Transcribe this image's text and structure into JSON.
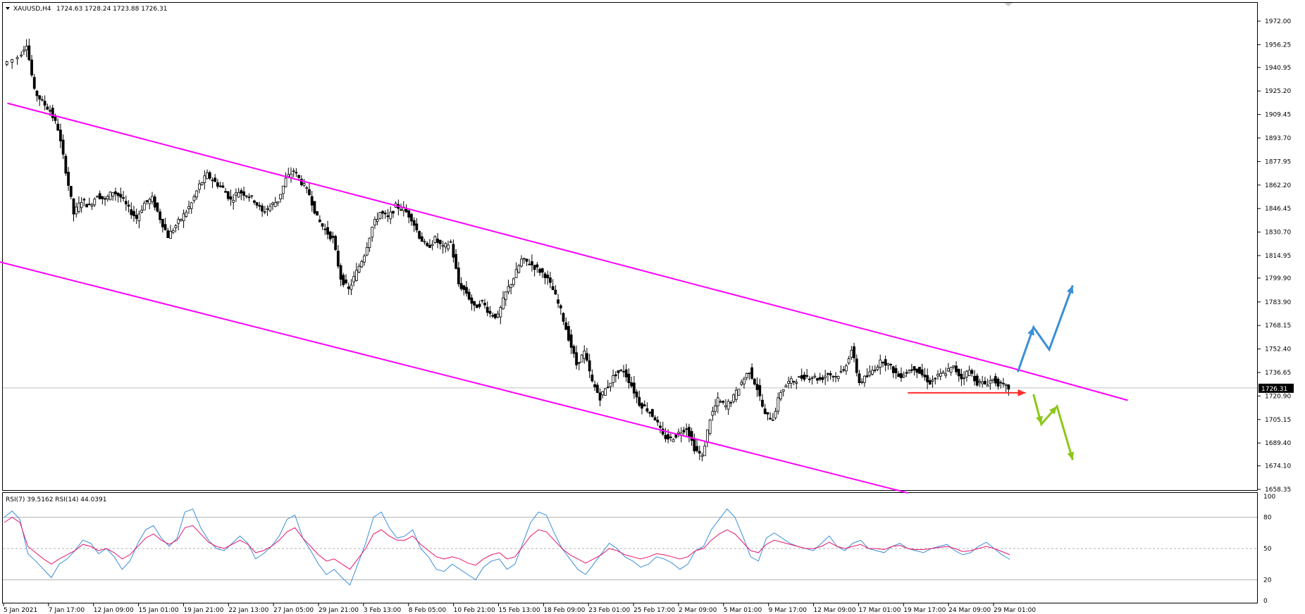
{
  "header": {
    "symbol_label": "XAUUSD,H4",
    "ohlc_label": "1724.63 1728.24 1723.88 1726.31"
  },
  "indicator": {
    "label": "RSI(7) 39.5162   RSI(14) 44.0391",
    "levels": [
      80,
      50,
      20
    ],
    "scale_labels": [
      "100",
      "50",
      "20",
      "80",
      "0"
    ]
  },
  "colors": {
    "candles": "#000000",
    "channel": "#ff00ff",
    "bull_arrows": "#3a8fd8",
    "bear_arrows": "#8cc71a",
    "support_arrow": "#ff2a2a",
    "rsi7": "#3a8fd8",
    "rsi14": "#e8176e"
  },
  "chart_data": [
    {
      "type": "candlestick",
      "symbol": "XAUUSD",
      "timeframe": "H4",
      "last_price": 1726.31,
      "last_price_label": "1726.31",
      "ylim": [
        1658.35,
        1972.0
      ],
      "y_ticks": [
        1972.0,
        1956.25,
        1940.95,
        1925.2,
        1909.45,
        1893.7,
        1877.95,
        1862.2,
        1846.45,
        1830.7,
        1814.95,
        1799.9,
        1783.9,
        1768.15,
        1752.4,
        1736.65,
        1720.9,
        1705.15,
        1689.4,
        1674.1,
        1658.35
      ],
      "y_tick_labels": [
        "1972.00",
        "1956.25",
        "1940.95",
        "1925.20",
        "1909.45",
        "1893.70",
        "1877.95",
        "1862.20",
        "1846.45",
        "1830.70",
        "1814.95",
        "1799.90",
        "1783.90",
        "1768.15",
        "1752.40",
        "1736.65",
        "1720.90",
        "1705.15",
        "1689.40",
        "1674.10",
        "1658.35"
      ],
      "x_tick_labels": [
        "5 Jan 2021",
        "7 Jan 17:00",
        "12 Jan 09:00",
        "15 Jan 01:00",
        "19 Jan 21:00",
        "22 Jan 13:00",
        "27 Jan 05:00",
        "29 Jan 21:00",
        "3 Feb 13:00",
        "8 Feb 05:00",
        "10 Feb 21:00",
        "15 Feb 13:00",
        "18 Feb 09:00",
        "23 Feb 01:00",
        "25 Feb 17:00",
        "2 Mar 09:00",
        "5 Mar 01:00",
        "9 Mar 17:00",
        "12 Mar 09:00",
        "17 Mar 01:00",
        "19 Mar 17:00",
        "24 Mar 09:00",
        "29 Mar 01:00"
      ],
      "close_path": [
        [
          0,
          1943
        ],
        [
          2,
          1948
        ],
        [
          3,
          1957
        ],
        [
          4,
          1925
        ],
        [
          5,
          1918
        ],
        [
          6,
          1912
        ],
        [
          7,
          1900
        ],
        [
          8,
          1872
        ],
        [
          9,
          1843
        ],
        [
          10,
          1852
        ],
        [
          11,
          1848
        ],
        [
          12,
          1856
        ],
        [
          13,
          1852
        ],
        [
          14,
          1858
        ],
        [
          15,
          1854
        ],
        [
          16,
          1846
        ],
        [
          17,
          1840
        ],
        [
          18,
          1850
        ],
        [
          19,
          1853
        ],
        [
          20,
          1840
        ],
        [
          21,
          1828
        ],
        [
          22,
          1835
        ],
        [
          23,
          1842
        ],
        [
          24,
          1850
        ],
        [
          25,
          1862
        ],
        [
          26,
          1869
        ],
        [
          27,
          1864
        ],
        [
          28,
          1860
        ],
        [
          29,
          1852
        ],
        [
          30,
          1858
        ],
        [
          31,
          1856
        ],
        [
          32,
          1852
        ],
        [
          33,
          1844
        ],
        [
          34,
          1848
        ],
        [
          35,
          1852
        ],
        [
          36,
          1866
        ],
        [
          37,
          1872
        ],
        [
          38,
          1864
        ],
        [
          39,
          1856
        ],
        [
          40,
          1840
        ],
        [
          41,
          1832
        ],
        [
          42,
          1826
        ],
        [
          43,
          1800
        ],
        [
          44,
          1792
        ],
        [
          45,
          1804
        ],
        [
          46,
          1816
        ],
        [
          47,
          1834
        ],
        [
          48,
          1844
        ],
        [
          49,
          1840
        ],
        [
          50,
          1848
        ],
        [
          51,
          1846
        ],
        [
          52,
          1840
        ],
        [
          53,
          1828
        ],
        [
          54,
          1820
        ],
        [
          55,
          1826
        ],
        [
          56,
          1820
        ],
        [
          57,
          1824
        ],
        [
          58,
          1796
        ],
        [
          59,
          1790
        ],
        [
          60,
          1780
        ],
        [
          61,
          1784
        ],
        [
          62,
          1776
        ],
        [
          63,
          1774
        ],
        [
          64,
          1790
        ],
        [
          65,
          1800
        ],
        [
          66,
          1812
        ],
        [
          67,
          1810
        ],
        [
          68,
          1806
        ],
        [
          69,
          1802
        ],
        [
          70,
          1792
        ],
        [
          71,
          1778
        ],
        [
          72,
          1760
        ],
        [
          73,
          1742
        ],
        [
          74,
          1750
        ],
        [
          75,
          1730
        ],
        [
          76,
          1720
        ],
        [
          77,
          1728
        ],
        [
          78,
          1736
        ],
        [
          79,
          1738
        ],
        [
          80,
          1728
        ],
        [
          81,
          1716
        ],
        [
          82,
          1712
        ],
        [
          83,
          1706
        ],
        [
          84,
          1694
        ],
        [
          85,
          1692
        ],
        [
          86,
          1696
        ],
        [
          87,
          1700
        ],
        [
          88,
          1686
        ],
        [
          89,
          1680
        ],
        [
          90,
          1706
        ],
        [
          91,
          1718
        ],
        [
          92,
          1714
        ],
        [
          93,
          1720
        ],
        [
          94,
          1730
        ],
        [
          95,
          1738
        ],
        [
          96,
          1726
        ],
        [
          97,
          1708
        ],
        [
          98,
          1706
        ],
        [
          99,
          1724
        ],
        [
          100,
          1730
        ],
        [
          101,
          1732
        ],
        [
          102,
          1734
        ],
        [
          103,
          1734
        ],
        [
          104,
          1732
        ],
        [
          105,
          1736
        ],
        [
          106,
          1734
        ],
        [
          107,
          1738
        ],
        [
          108,
          1752
        ],
        [
          109,
          1730
        ],
        [
          110,
          1734
        ],
        [
          111,
          1740
        ],
        [
          112,
          1745
        ],
        [
          113,
          1740
        ],
        [
          114,
          1734
        ],
        [
          115,
          1737
        ],
        [
          116,
          1740
        ],
        [
          117,
          1735
        ],
        [
          118,
          1730
        ],
        [
          119,
          1734
        ],
        [
          120,
          1737
        ],
        [
          121,
          1740
        ],
        [
          122,
          1733
        ],
        [
          123,
          1738
        ],
        [
          124,
          1730
        ],
        [
          125,
          1729
        ],
        [
          126,
          1732
        ],
        [
          127,
          1728
        ],
        [
          128,
          1726.31
        ]
      ],
      "last_price_line": 1726.31,
      "drawings": {
        "channel_upper": [
          [
            0.4,
            1917
          ],
          [
            128,
            1740
          ],
          [
            143,
            1718
          ]
        ],
        "channel_lower": [
          [
            -15,
            1830
          ],
          [
            115,
            1656
          ]
        ],
        "red_support_arrow": [
          [
            115,
            1723
          ],
          [
            130,
            1723
          ]
        ],
        "blue_path": [
          [
            129,
            1737
          ],
          [
            131,
            1767
          ],
          [
            133,
            1752
          ],
          [
            136,
            1795
          ]
        ],
        "green_path": [
          [
            131,
            1722
          ],
          [
            132,
            1702
          ],
          [
            134,
            1714
          ],
          [
            136,
            1678
          ]
        ]
      }
    },
    {
      "type": "line",
      "title": "RSI(7) 39.5162   RSI(14) 44.0391",
      "ylim": [
        0,
        100
      ],
      "levels": [
        80,
        50,
        20
      ],
      "series": [
        {
          "name": "RSI(7)",
          "current": 39.5162,
          "values": [
            80,
            86,
            78,
            45,
            38,
            30,
            22,
            35,
            40,
            48,
            58,
            55,
            45,
            50,
            42,
            30,
            38,
            55,
            68,
            72,
            60,
            52,
            60,
            85,
            88,
            70,
            58,
            50,
            48,
            55,
            62,
            55,
            40,
            45,
            52,
            62,
            78,
            82,
            60,
            48,
            35,
            25,
            30,
            22,
            15,
            35,
            55,
            80,
            85,
            70,
            60,
            62,
            68,
            50,
            42,
            30,
            28,
            35,
            30,
            25,
            20,
            32,
            38,
            40,
            30,
            35,
            55,
            75,
            85,
            82,
            65,
            50,
            40,
            30,
            25,
            35,
            45,
            55,
            50,
            42,
            38,
            32,
            35,
            42,
            40,
            36,
            30,
            35,
            48,
            52,
            68,
            78,
            88,
            80,
            62,
            42,
            38,
            60,
            65,
            60,
            55,
            52,
            50,
            48,
            55,
            62,
            52,
            48,
            55,
            58,
            50,
            48,
            46,
            52,
            55,
            50,
            48,
            46,
            50,
            52,
            54,
            48,
            44,
            46,
            52,
            56,
            50,
            44,
            39.5
          ]
        },
        {
          "name": "RSI(14)",
          "current": 44.0391,
          "values": [
            75,
            80,
            75,
            52,
            46,
            40,
            35,
            40,
            44,
            48,
            54,
            52,
            48,
            50,
            46,
            40,
            44,
            52,
            60,
            64,
            58,
            54,
            58,
            70,
            72,
            64,
            56,
            52,
            50,
            54,
            58,
            54,
            46,
            48,
            52,
            58,
            66,
            70,
            60,
            52,
            44,
            38,
            40,
            35,
            30,
            40,
            50,
            64,
            68,
            62,
            58,
            58,
            62,
            54,
            48,
            42,
            40,
            42,
            40,
            36,
            34,
            40,
            44,
            46,
            40,
            42,
            52,
            62,
            68,
            66,
            58,
            50,
            44,
            40,
            36,
            40,
            44,
            50,
            48,
            44,
            42,
            40,
            42,
            45,
            44,
            42,
            40,
            42,
            48,
            50,
            58,
            64,
            68,
            64,
            56,
            48,
            46,
            54,
            58,
            56,
            54,
            52,
            50,
            50,
            52,
            56,
            52,
            50,
            52,
            54,
            50,
            50,
            49,
            52,
            53,
            50,
            49,
            49,
            50,
            51,
            52,
            50,
            47,
            48,
            50,
            52,
            50,
            47,
            44
          ]
        }
      ]
    }
  ]
}
